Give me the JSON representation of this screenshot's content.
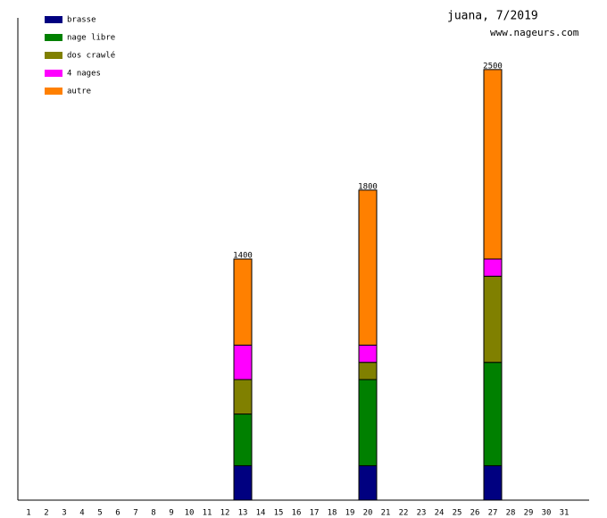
{
  "chart_data": {
    "type": "stacked-bar",
    "title": "juana, 7/2019",
    "subtitle": "www.nageurs.com",
    "categories": [
      "1",
      "2",
      "3",
      "4",
      "5",
      "6",
      "7",
      "8",
      "9",
      "10",
      "11",
      "12",
      "13",
      "14",
      "15",
      "16",
      "17",
      "18",
      "19",
      "20",
      "21",
      "22",
      "23",
      "24",
      "25",
      "26",
      "27",
      "28",
      "29",
      "30",
      "31"
    ],
    "series": [
      {
        "name": "brasse",
        "color": "#000080",
        "values": [
          null,
          null,
          null,
          null,
          null,
          null,
          null,
          null,
          null,
          null,
          null,
          null,
          200,
          null,
          null,
          null,
          null,
          null,
          null,
          200,
          null,
          null,
          null,
          null,
          null,
          null,
          200,
          null,
          null,
          null,
          null
        ]
      },
      {
        "name": "nage libre",
        "color": "#008000",
        "values": [
          null,
          null,
          null,
          null,
          null,
          null,
          null,
          null,
          null,
          null,
          null,
          null,
          300,
          null,
          null,
          null,
          null,
          null,
          null,
          500,
          null,
          null,
          null,
          null,
          null,
          null,
          600,
          null,
          null,
          null,
          null
        ]
      },
      {
        "name": "dos crawlé",
        "color": "#808000",
        "values": [
          null,
          null,
          null,
          null,
          null,
          null,
          null,
          null,
          null,
          null,
          null,
          null,
          200,
          null,
          null,
          null,
          null,
          null,
          null,
          100,
          null,
          null,
          null,
          null,
          null,
          null,
          500,
          null,
          null,
          null,
          null
        ]
      },
      {
        "name": "4 nages",
        "color": "#ff00ff",
        "values": [
          null,
          null,
          null,
          null,
          null,
          null,
          null,
          null,
          null,
          null,
          null,
          null,
          200,
          null,
          null,
          null,
          null,
          null,
          null,
          100,
          null,
          null,
          null,
          null,
          null,
          null,
          100,
          null,
          null,
          null,
          null
        ]
      },
      {
        "name": "autre",
        "color": "#ff8000",
        "values": [
          null,
          null,
          null,
          null,
          null,
          null,
          null,
          null,
          null,
          null,
          null,
          null,
          500,
          null,
          null,
          null,
          null,
          null,
          null,
          900,
          null,
          null,
          null,
          null,
          null,
          null,
          1100,
          null,
          null,
          null,
          null
        ]
      }
    ],
    "totals": [
      null,
      null,
      null,
      null,
      null,
      null,
      null,
      null,
      null,
      null,
      null,
      null,
      1400,
      null,
      null,
      null,
      null,
      null,
      null,
      1800,
      null,
      null,
      null,
      null,
      null,
      null,
      2500,
      null,
      null,
      null,
      null
    ],
    "ylim": [
      0,
      2800
    ]
  }
}
